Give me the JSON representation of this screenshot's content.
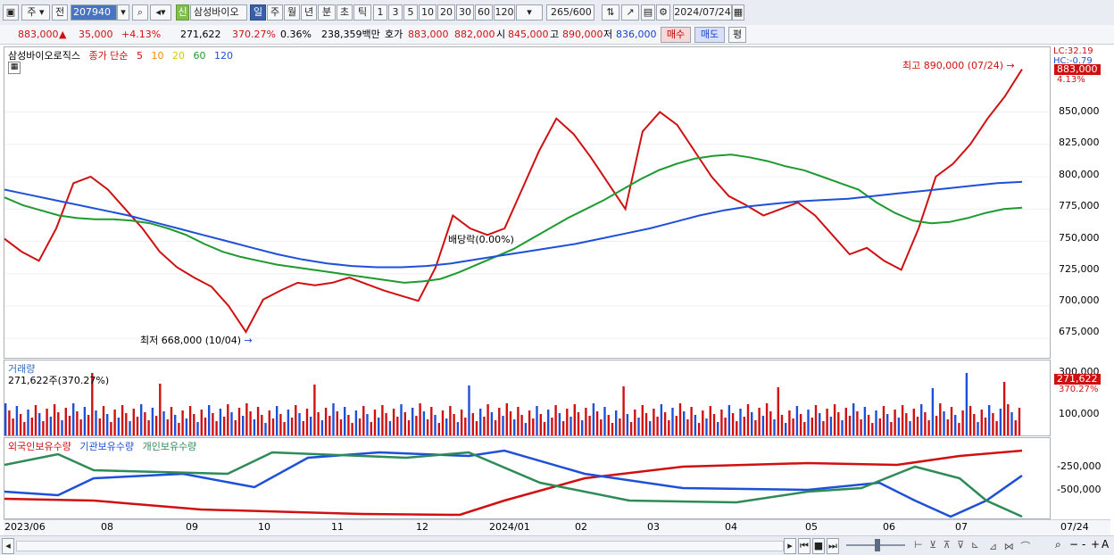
{
  "toolbar": {
    "period_main": "주",
    "prev_label": "전",
    "stock_code": "207940",
    "stock_name": "삼성바이오",
    "new_badge": "신",
    "periods": [
      "일",
      "주",
      "월",
      "년",
      "분",
      "초",
      "틱"
    ],
    "active_period": "일",
    "intervals": [
      "1",
      "3",
      "5",
      "10",
      "20",
      "30",
      "60",
      "120"
    ],
    "count": "265",
    "count_max": "/600",
    "date": "2024/07/24"
  },
  "info": {
    "price": "883,000",
    "change_arrow": "▲",
    "change": "35,000",
    "change_pct": "+4.13%",
    "volume": "271,622",
    "vol_ratio": "370.27%",
    "turnover": "0.36%",
    "amount": "238,359백만",
    "ask_label": "호가",
    "ask": "883,000",
    "bid": "882,000",
    "open_label": "시",
    "open": "845,000",
    "high_label": "고",
    "high": "890,000",
    "low_label": "저",
    "low": "836,000",
    "buy_btn": "매수",
    "sell_btn": "매도",
    "eval_btn": "평"
  },
  "price_pane": {
    "name": "삼성바이오로직스",
    "legend_title": "종가 단순",
    "ma": [
      {
        "label": "5",
        "color": "#d01010"
      },
      {
        "label": "10",
        "color": "#f08a00"
      },
      {
        "label": "20",
        "color": "#f0e000"
      },
      {
        "label": "60",
        "color": "#1e9a30"
      },
      {
        "label": "120",
        "color": "#1e4fd8"
      }
    ],
    "high_note": "최고 890,000 (07/24)",
    "low_note": "최저 668,000 (10/04)",
    "dividend_note": "배당락(0.00%)",
    "lc_label": "LC:32.19",
    "hc_label": "HC:-0.79",
    "current_tag": "883,000",
    "current_pct": "4.13%",
    "y_ticks": [
      "850,000",
      "825,000",
      "800,000",
      "775,000",
      "750,000",
      "725,000",
      "700,000",
      "675,000"
    ]
  },
  "volume_pane": {
    "title": "거래량",
    "value": "271,622주(370.27%)",
    "y_ticks": [
      "300,000",
      "100,000"
    ],
    "current_tag": "271,622",
    "current_pct": "370.27%"
  },
  "flow_pane": {
    "items": [
      {
        "label": "외국인보유수량",
        "color": "#d01010"
      },
      {
        "label": "기관보유수량",
        "color": "#1e4fd8"
      },
      {
        "label": "개인보유수량",
        "color": "#2e8b57"
      }
    ],
    "y_ticks": [
      "-250,000",
      "-500,000"
    ]
  },
  "x_axis": {
    "labels": [
      "2023/06",
      "08",
      "09",
      "10",
      "11",
      "12",
      "2024/01",
      "02",
      "03",
      "04",
      "05",
      "06",
      "07"
    ],
    "end_label": "07/24"
  },
  "chart_data": {
    "type": "line",
    "title": "삼성바이오로직스",
    "ylim": [
      660000,
      900000
    ],
    "series": [
      {
        "name": "5",
        "values": [
          752000,
          742000,
          735000,
          760000,
          795000,
          800000,
          790000,
          775000,
          760000,
          742000,
          730000,
          722000,
          715000,
          700000,
          680000,
          705000,
          712000,
          718000,
          716000,
          718000,
          722000,
          717000,
          712000,
          708000,
          704000,
          730000,
          770000,
          760000,
          755000,
          760000,
          790000,
          820000,
          845000,
          833000,
          815000,
          795000,
          775000,
          835000,
          850000,
          840000,
          820000,
          800000,
          785000,
          778000,
          770000,
          775000,
          780000,
          770000,
          755000,
          740000,
          745000,
          735000,
          728000,
          760000,
          800000,
          810000,
          825000,
          845000,
          862000,
          883000
        ]
      },
      {
        "name": "60",
        "values": [
          784000,
          778000,
          774000,
          770000,
          768000,
          767000,
          767000,
          766000,
          764000,
          760000,
          755000,
          748000,
          742000,
          738000,
          735000,
          732000,
          730000,
          728000,
          726000,
          724000,
          722000,
          720000,
          718000,
          719000,
          721000,
          726000,
          732000,
          738000,
          744000,
          752000,
          760000,
          768000,
          775000,
          782000,
          790000,
          798000,
          805000,
          810000,
          814000,
          816000,
          817000,
          815000,
          812000,
          808000,
          805000,
          800000,
          795000,
          790000,
          780000,
          772000,
          766000,
          764000,
          765000,
          768000,
          772000,
          775000,
          776000
        ]
      },
      {
        "name": "120",
        "values": [
          790000,
          786000,
          782000,
          778000,
          774000,
          770000,
          765000,
          760000,
          755000,
          750000,
          745000,
          740000,
          736000,
          733000,
          731000,
          730000,
          730000,
          731000,
          733000,
          736000,
          739000,
          742000,
          745000,
          748000,
          752000,
          756000,
          760000,
          765000,
          770000,
          774000,
          777000,
          779000,
          781000,
          782000,
          783000,
          785000,
          787000,
          789000,
          791000,
          793000,
          795000,
          796000
        ]
      }
    ]
  }
}
